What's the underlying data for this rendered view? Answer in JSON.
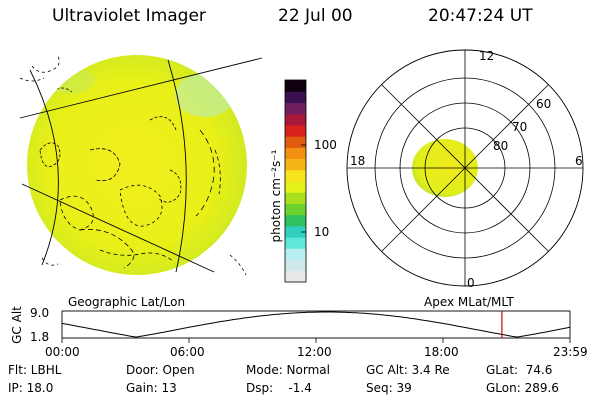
{
  "header": {
    "title": "Ultraviolet Imager",
    "date": "22 Jul 00",
    "time": "20:47:24 UT"
  },
  "colorbar": {
    "label": "photon cm⁻²s⁻¹",
    "ticks": [
      "100",
      "10"
    ],
    "colors": [
      "#e8e8e8",
      "#cfe6ea",
      "#b8eef0",
      "#5de8d9",
      "#2fd0c0",
      "#30c060",
      "#6cd230",
      "#a8e020",
      "#e6f01a",
      "#f7e41c",
      "#f7b416",
      "#f29012",
      "#e05a10",
      "#d8201c",
      "#a81838",
      "#702060",
      "#3a1050",
      "#100010"
    ]
  },
  "geo_panel": {
    "label": "Geographic Lat/Lon"
  },
  "polar_panel": {
    "label": "Apex MLat/MLT",
    "mlt_labels": [
      "12",
      "18",
      "6",
      "0"
    ],
    "mlat_labels": [
      "60",
      "70",
      "80"
    ]
  },
  "timeline": {
    "ylabel": "GC Alt",
    "ymax": "9.0",
    "ymin": "1.8",
    "xticks": [
      "00:00",
      "06:00",
      "12:00",
      "18:00",
      "23:59"
    ],
    "marker_time": "20:47",
    "marker_color": "#cc0000"
  },
  "info": {
    "flt": "Flt: LBHL",
    "ip": "IP: 18.0",
    "door": "Door: Open",
    "gain": "Gain: 13",
    "mode": "Mode: Normal",
    "dsp": "Dsp:    -1.4",
    "gcalt": "GC Alt: 3.4 Re",
    "seq": "Seq: 39",
    "glat": "GLat:  74.6",
    "glon": "GLon: 289.6"
  }
}
